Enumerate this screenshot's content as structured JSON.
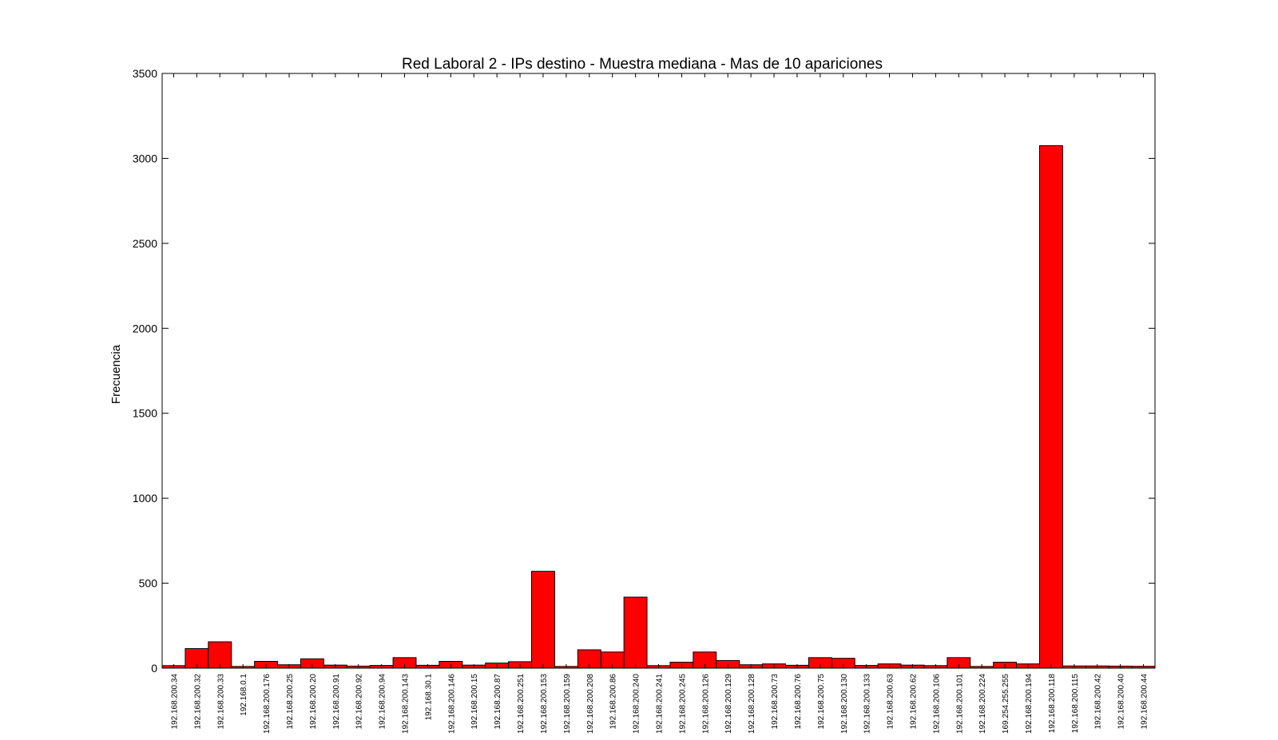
{
  "chart_data": {
    "type": "bar",
    "title": "Red Laboral 2 - IPs destino - Muestra mediana - Mas de 10 apariciones",
    "xlabel": "",
    "ylabel": "Frecuencia",
    "ylim": [
      0,
      3500
    ],
    "yticks": [
      0,
      500,
      1000,
      1500,
      2000,
      2500,
      3000,
      3500
    ],
    "grid": false,
    "bar_color": "#ff0000",
    "edge_color": "#000000",
    "categories": [
      "192.168.200.34",
      "192.168.200.32",
      "192.168.200.33",
      "192.168.0.1",
      "192.168.200.176",
      "192.168.200.25",
      "192.168.200.20",
      "192.168.200.91",
      "192.168.200.92",
      "192.168.200.94",
      "192.168.200.143",
      "192.168.30.1",
      "192.168.200.146",
      "192.168.200.15",
      "192.168.200.87",
      "192.168.200.251",
      "192.168.200.153",
      "192.168.200.159",
      "192.168.200.208",
      "192.168.200.86",
      "192.168.200.240",
      "192.168.200.241",
      "192.168.200.245",
      "192.168.200.126",
      "192.168.200.129",
      "192.168.200.128",
      "192.168.200.73",
      "192.168.200.76",
      "192.168.200.75",
      "192.168.200.130",
      "192.168.200.133",
      "192.168.200.63",
      "192.168.200.62",
      "192.168.200.106",
      "192.168.200.101",
      "192.168.200.224",
      "169.254.255.255",
      "192.168.200.194",
      "192.168.200.118",
      "192.168.200.115",
      "192.168.200.42",
      "192.168.200.40",
      "192.168.200.44"
    ],
    "values": [
      15,
      115,
      155,
      10,
      40,
      20,
      55,
      18,
      12,
      16,
      62,
      17,
      40,
      18,
      30,
      38,
      570,
      10,
      108,
      95,
      418,
      15,
      35,
      95,
      45,
      20,
      25,
      17,
      62,
      58,
      16,
      25,
      18,
      15,
      62,
      10,
      35,
      25,
      3075,
      13,
      13,
      12,
      11
    ]
  }
}
